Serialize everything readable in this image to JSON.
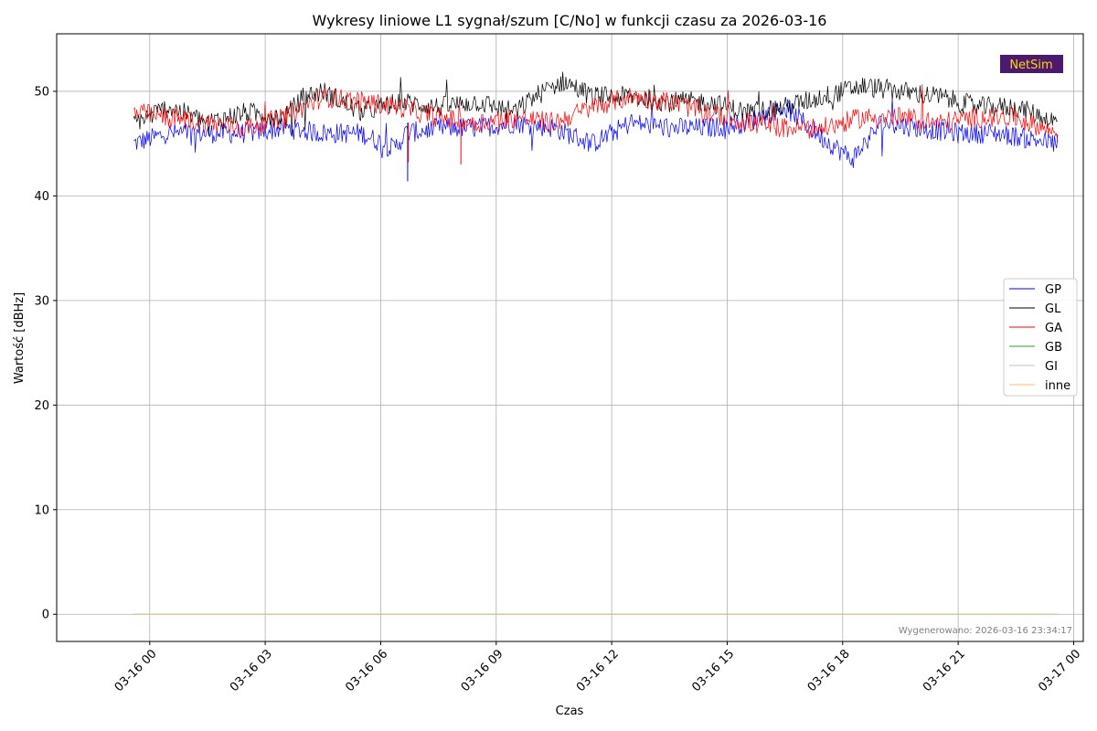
{
  "chart_data": {
    "type": "line",
    "title": "Wykresy liniowe L1 sygnał/szum [C/No] w funkcji czasu za 2026-03-16",
    "xlabel": "Czas",
    "ylabel": "Wartość [dBHz]",
    "x_range": [
      "2026-03-15 21:35",
      "2026-03-17 00:15"
    ],
    "x_data_range": [
      "2026-03-15 23:35",
      "2026-03-16 23:35"
    ],
    "ylim": [
      -2.6,
      55.5
    ],
    "xticks": [
      "03-16 00",
      "03-16 03",
      "03-16 06",
      "03-16 09",
      "03-16 12",
      "03-16 15",
      "03-16 18",
      "03-16 21",
      "03-17 00"
    ],
    "yticks": [
      0,
      10,
      20,
      30,
      40,
      50
    ],
    "grid": true,
    "legend_position": "center-right",
    "series": [
      {
        "name": "GP",
        "color": "#0000ff",
        "x": [
          "23:35",
          "00:30",
          "01:30",
          "02:30",
          "03:30",
          "04:30",
          "05:30",
          "06:20",
          "06:40",
          "07:30",
          "08:30",
          "09:30",
          "10:30",
          "11:30",
          "12:30",
          "13:30",
          "14:30",
          "15:30",
          "16:30",
          "17:30",
          "18:15",
          "19:00",
          "20:00",
          "21:00",
          "22:00",
          "23:35"
        ],
        "values": [
          45,
          46,
          46,
          46,
          46.5,
          46,
          46,
          44.5,
          46,
          46.5,
          46.5,
          47,
          46.5,
          45,
          47,
          46.5,
          46.5,
          47,
          48.5,
          45.5,
          43.5,
          47,
          46.5,
          46,
          46,
          45
        ]
      },
      {
        "name": "GL",
        "color": "#000000",
        "x": [
          "23:35",
          "00:30",
          "01:30",
          "02:30",
          "03:30",
          "04:00",
          "04:30",
          "05:30",
          "06:30",
          "07:30",
          "08:30",
          "09:30",
          "10:00",
          "10:45",
          "11:30",
          "12:30",
          "13:30",
          "14:30",
          "15:30",
          "16:30",
          "17:30",
          "18:30",
          "19:30",
          "20:30",
          "21:30",
          "22:30",
          "23:35"
        ],
        "values": [
          47,
          48.5,
          47,
          48,
          47.5,
          49.5,
          50,
          48,
          49,
          48.5,
          49,
          48,
          49.5,
          51,
          49.5,
          49.5,
          49,
          49,
          48,
          48.5,
          49.5,
          50.5,
          50,
          49.5,
          48.5,
          48.5,
          47
        ]
      },
      {
        "name": "GA",
        "color": "#ff0000",
        "x": [
          "23:35",
          "00:30",
          "01:30",
          "02:30",
          "03:30",
          "04:30",
          "05:30",
          "06:30",
          "07:30",
          "08:30",
          "09:30",
          "10:30",
          "11:30",
          "12:30",
          "13:30",
          "14:30",
          "15:30",
          "16:30",
          "17:30",
          "18:30",
          "19:30",
          "20:30",
          "21:30",
          "22:30",
          "23:35"
        ],
        "values": [
          48,
          47.5,
          47,
          46.5,
          47.5,
          49.5,
          49,
          48.5,
          47.5,
          47,
          47.5,
          47,
          48.5,
          49.5,
          49,
          48,
          47,
          46.5,
          46.5,
          47.5,
          47.5,
          47,
          47.5,
          47.5,
          46
        ]
      },
      {
        "name": "GB",
        "color": "#2ca02c",
        "x": [
          "23:35",
          "23:35"
        ],
        "values": [
          0,
          0
        ]
      },
      {
        "name": "GI",
        "color": "#aec7e8",
        "x": [
          "23:35",
          "23:35"
        ],
        "values": [
          0,
          0
        ]
      },
      {
        "name": "inne",
        "color": "#ffbb78",
        "x": [
          "23:35",
          "23:35"
        ],
        "values": [
          0,
          0
        ]
      }
    ],
    "annotation": "Wygenerowano: 2026-03-16 23:34:17"
  },
  "logo": {
    "text": "NetSim",
    "bg": "#4b1a6e",
    "fg": "#ffd700"
  }
}
